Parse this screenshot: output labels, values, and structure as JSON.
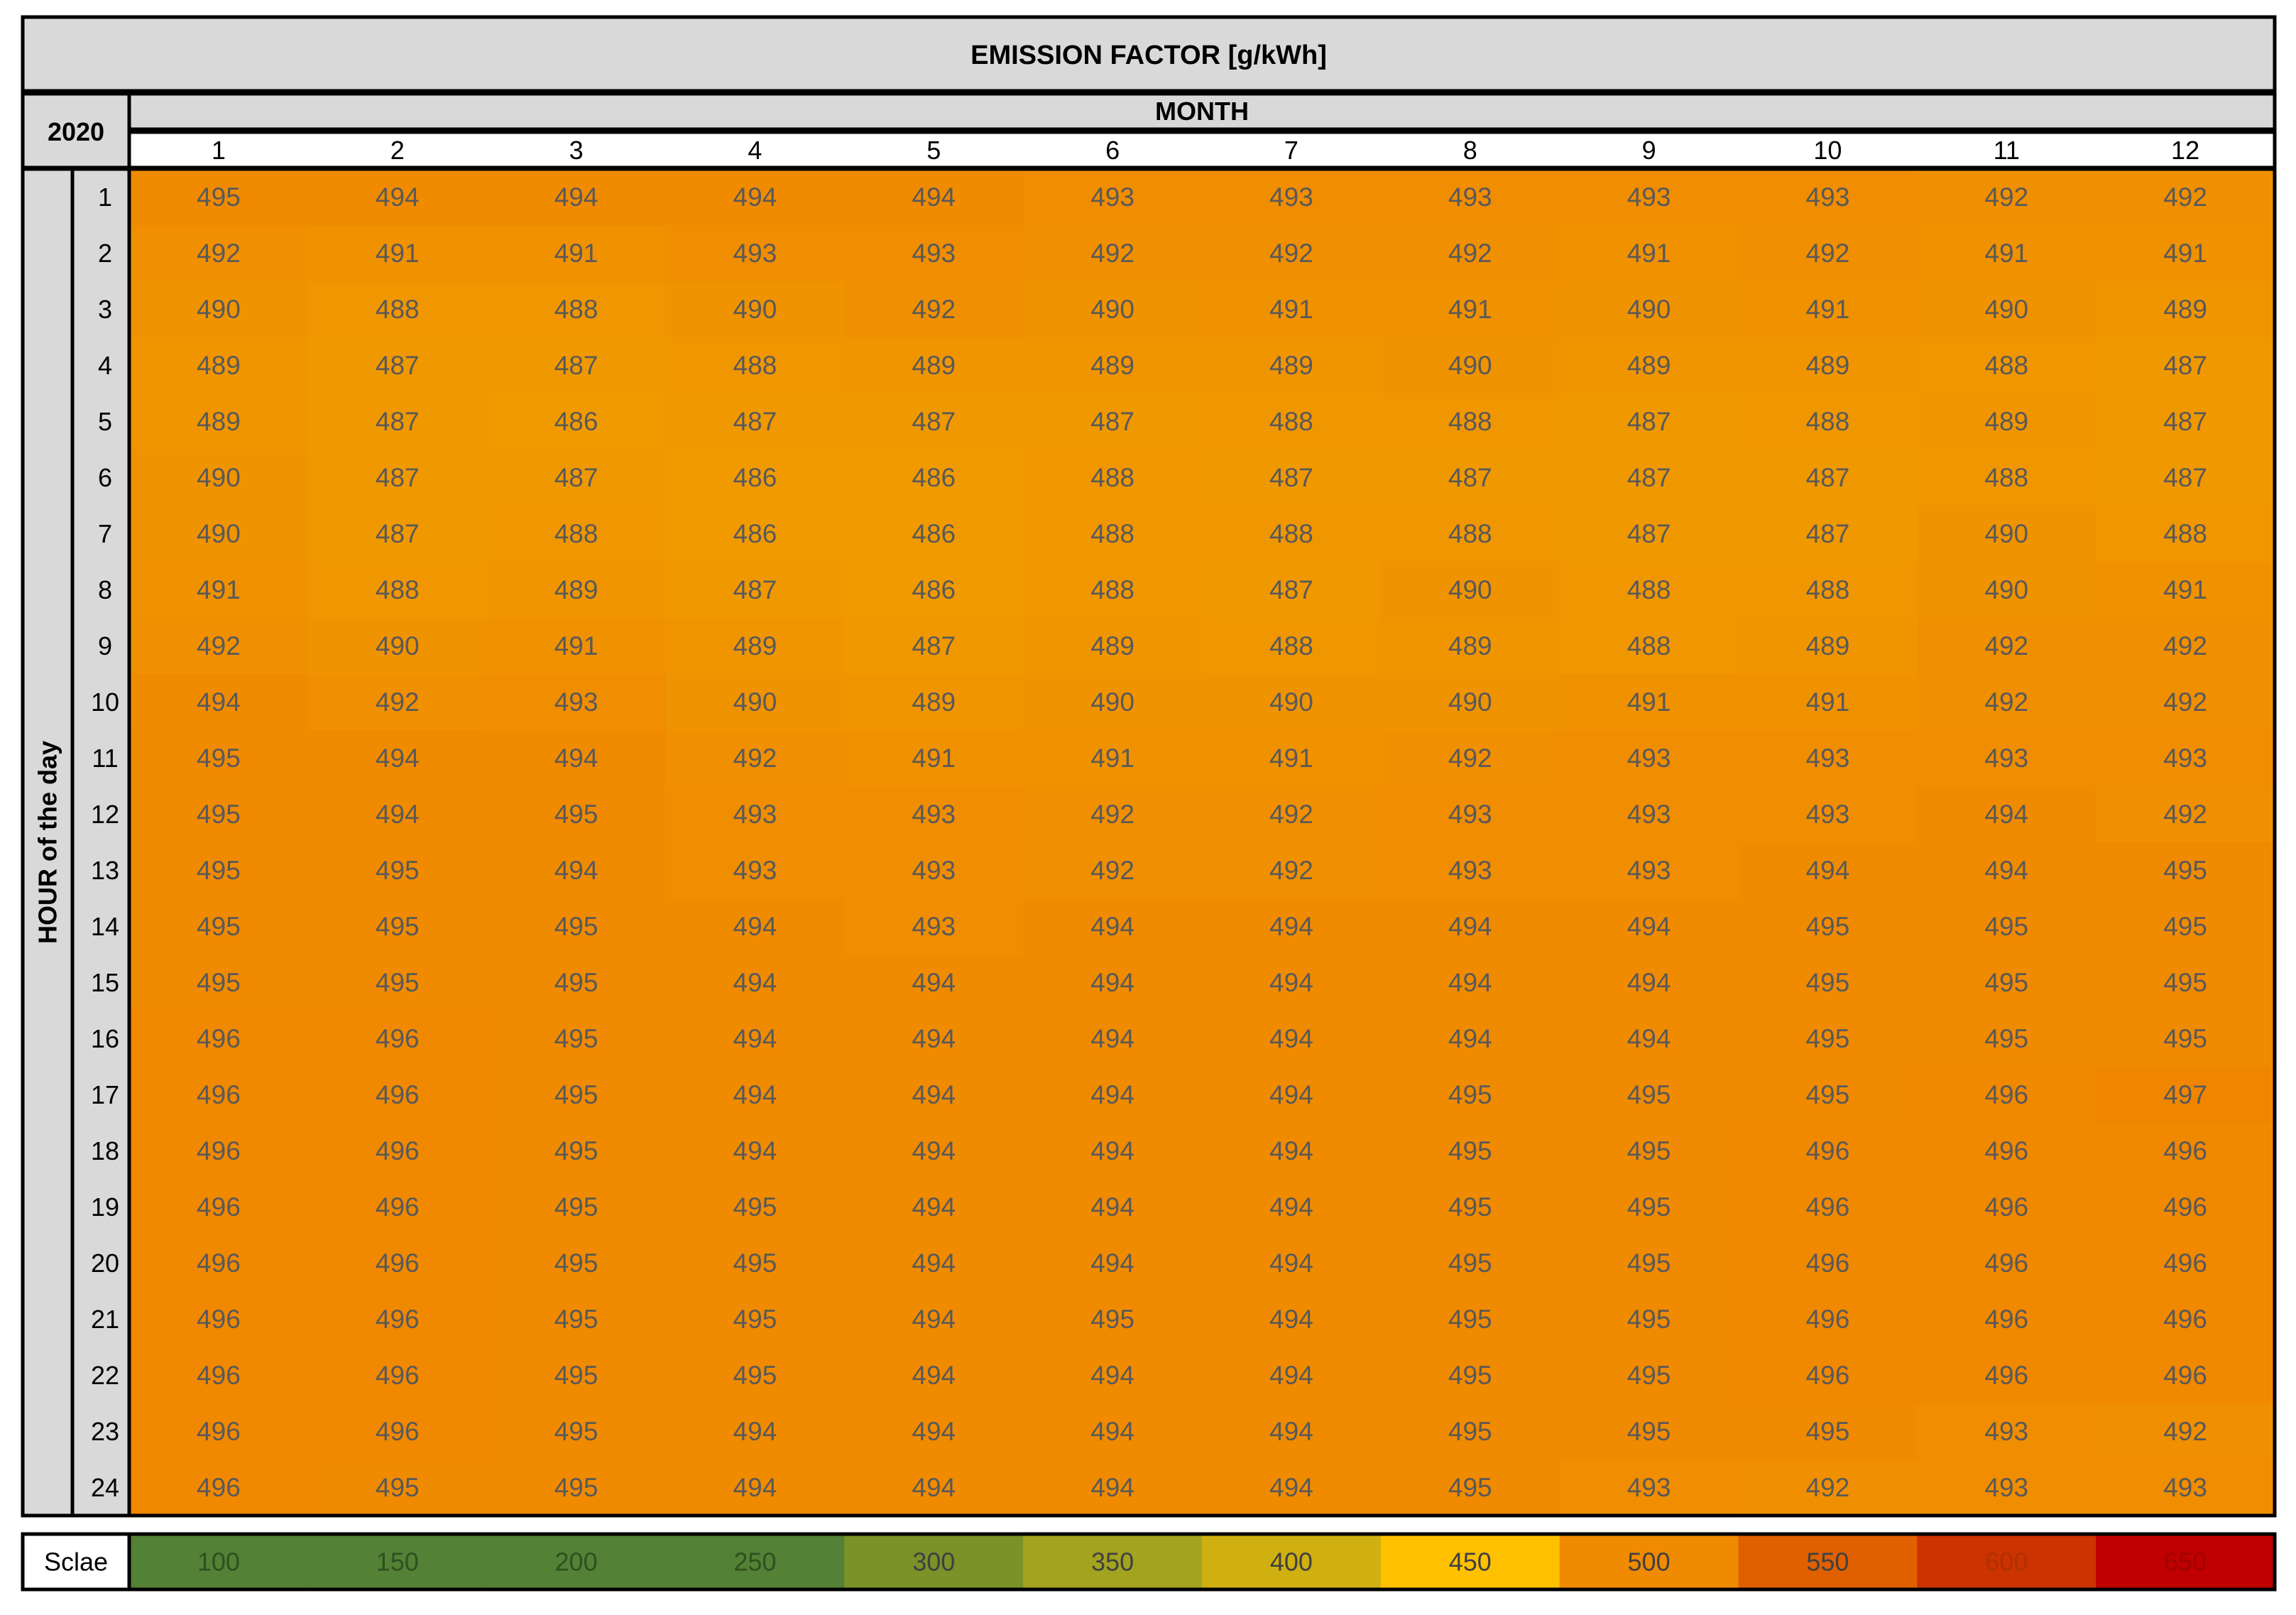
{
  "chart_data": {
    "type": "heatmap",
    "title": "EMISSION FACTOR [g/kWh]",
    "year": "2020",
    "xlabel": "MONTH",
    "ylabel": "HOUR of the day",
    "x_categories": [
      "1",
      "2",
      "3",
      "4",
      "5",
      "6",
      "7",
      "8",
      "9",
      "10",
      "11",
      "12"
    ],
    "y_categories": [
      "1",
      "2",
      "3",
      "4",
      "5",
      "6",
      "7",
      "8",
      "9",
      "10",
      "11",
      "12",
      "13",
      "14",
      "15",
      "16",
      "17",
      "18",
      "19",
      "20",
      "21",
      "22",
      "23",
      "24"
    ],
    "values": [
      [
        495,
        494,
        494,
        494,
        494,
        493,
        493,
        493,
        493,
        493,
        492,
        492
      ],
      [
        492,
        491,
        491,
        493,
        493,
        492,
        492,
        492,
        491,
        492,
        491,
        491
      ],
      [
        490,
        488,
        488,
        490,
        492,
        490,
        491,
        491,
        490,
        491,
        490,
        489
      ],
      [
        489,
        487,
        487,
        488,
        489,
        489,
        489,
        490,
        489,
        489,
        488,
        487
      ],
      [
        489,
        487,
        486,
        487,
        487,
        487,
        488,
        488,
        487,
        488,
        489,
        487
      ],
      [
        490,
        487,
        487,
        486,
        486,
        488,
        487,
        487,
        487,
        487,
        488,
        487
      ],
      [
        490,
        487,
        488,
        486,
        486,
        488,
        488,
        488,
        487,
        487,
        490,
        488
      ],
      [
        491,
        488,
        489,
        487,
        486,
        488,
        487,
        490,
        488,
        488,
        490,
        491
      ],
      [
        492,
        490,
        491,
        489,
        487,
        489,
        488,
        489,
        488,
        489,
        492,
        492
      ],
      [
        494,
        492,
        493,
        490,
        489,
        490,
        490,
        490,
        491,
        491,
        492,
        492
      ],
      [
        495,
        494,
        494,
        492,
        491,
        491,
        491,
        492,
        493,
        493,
        493,
        493
      ],
      [
        495,
        494,
        495,
        493,
        493,
        492,
        492,
        493,
        493,
        493,
        494,
        492
      ],
      [
        495,
        495,
        494,
        493,
        493,
        492,
        492,
        493,
        493,
        494,
        494,
        495
      ],
      [
        495,
        495,
        495,
        494,
        493,
        494,
        494,
        494,
        494,
        495,
        495,
        495
      ],
      [
        495,
        495,
        495,
        494,
        494,
        494,
        494,
        494,
        494,
        495,
        495,
        495
      ],
      [
        496,
        496,
        495,
        494,
        494,
        494,
        494,
        494,
        494,
        495,
        495,
        495
      ],
      [
        496,
        496,
        495,
        494,
        494,
        494,
        494,
        495,
        495,
        495,
        496,
        497
      ],
      [
        496,
        496,
        495,
        494,
        494,
        494,
        494,
        495,
        495,
        496,
        496,
        496
      ],
      [
        496,
        496,
        495,
        495,
        494,
        494,
        494,
        495,
        495,
        496,
        496,
        496
      ],
      [
        496,
        496,
        495,
        495,
        494,
        494,
        494,
        495,
        495,
        496,
        496,
        496
      ],
      [
        496,
        496,
        495,
        495,
        494,
        495,
        494,
        495,
        495,
        496,
        496,
        496
      ],
      [
        496,
        496,
        495,
        495,
        494,
        494,
        494,
        495,
        495,
        496,
        496,
        496
      ],
      [
        496,
        496,
        495,
        494,
        494,
        494,
        494,
        495,
        495,
        495,
        493,
        492
      ],
      [
        496,
        495,
        495,
        494,
        494,
        494,
        494,
        495,
        493,
        492,
        493,
        493
      ]
    ],
    "scale": {
      "label": "Sclae",
      "values": [
        100,
        150,
        200,
        250,
        300,
        350,
        400,
        450,
        500,
        550,
        600,
        650
      ],
      "colors": [
        "#538135",
        "#538135",
        "#538135",
        "#538135",
        "#7a9227",
        "#a3a320",
        "#cfb010",
        "#ffc000",
        "#f08a00",
        "#e06000",
        "#cc3300",
        "#c00000"
      ]
    },
    "colors": {
      "header_fill": "#d9d9d9",
      "cell_fill": "#ef9000",
      "cell_text": "#595959",
      "border": "#000000"
    }
  }
}
